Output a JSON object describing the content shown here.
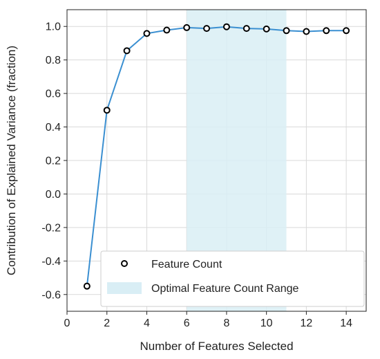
{
  "chart_data": {
    "type": "line",
    "title": "",
    "xlabel": "Number of Features Selected",
    "ylabel": "Contribution of Explained Variance (fraction)",
    "xlim": [
      0,
      15
    ],
    "ylim": [
      -0.7,
      1.1
    ],
    "xticks": [
      "0",
      "2",
      "4",
      "6",
      "8",
      "10",
      "12",
      "14"
    ],
    "yticks": [
      "-0.6",
      "-0.4",
      "-0.2",
      "0.0",
      "0.2",
      "0.4",
      "0.6",
      "0.8",
      "1.0"
    ],
    "grid": true,
    "legend_position": "lower-right",
    "highlight_range": {
      "name": "Optimal Feature Count Range",
      "x_start": 6,
      "x_end": 11,
      "color": "#d9eef5"
    },
    "series": [
      {
        "name": "Feature Count",
        "color": "#3a8fd1",
        "marker": "circle",
        "x": [
          1,
          2,
          3,
          4,
          5,
          6,
          7,
          8,
          9,
          10,
          11,
          12,
          13,
          14
        ],
        "y": [
          -0.55,
          0.5,
          0.855,
          0.958,
          0.978,
          0.993,
          0.988,
          0.998,
          0.988,
          0.985,
          0.975,
          0.97,
          0.975,
          0.975
        ]
      }
    ],
    "legend": [
      "Feature Count",
      "Optimal Feature Count Range"
    ]
  }
}
